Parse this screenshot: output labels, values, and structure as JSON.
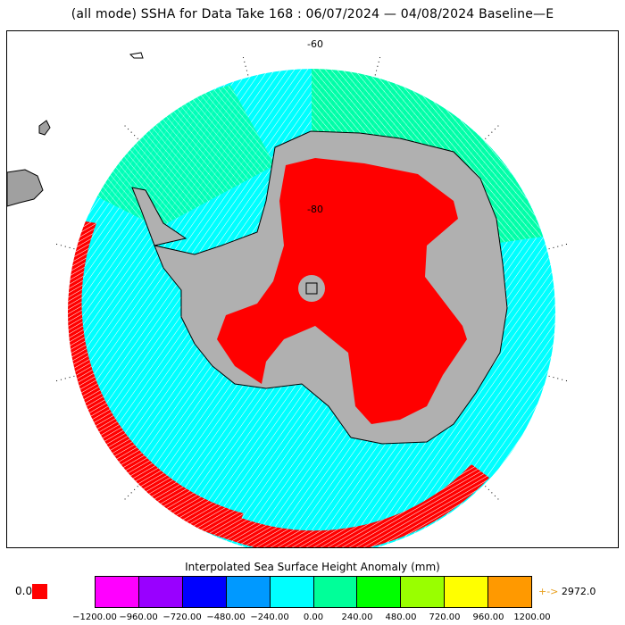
{
  "title": "(all mode) SSHA for Data Take 168 : 06/07/2024 — 04/08/2024 Baseline—E",
  "map": {
    "lat_labels": [
      "-60",
      "-80"
    ],
    "colors": {
      "ocean_low": "#00ffff",
      "ocean_mid": "#00ff99",
      "ice_shelf": "#b0b0b0",
      "land_high": "#ff0000",
      "continent_outline": "#000000",
      "outside_land": "#a0a0a0",
      "grid": "#000000"
    }
  },
  "legend": {
    "title": "Interpolated Sea Surface Height Anomaly (mm)",
    "under_value": "0.0",
    "under_color": "#ff0000",
    "over_value": "2972.0",
    "over_arrow": "+->",
    "bins": [
      {
        "color": "#ff00ff"
      },
      {
        "color": "#9900ff"
      },
      {
        "color": "#0000ff"
      },
      {
        "color": "#0099ff"
      },
      {
        "color": "#00ffff"
      },
      {
        "color": "#00ff99"
      },
      {
        "color": "#00ff00"
      },
      {
        "color": "#99ff00"
      },
      {
        "color": "#ffff00"
      },
      {
        "color": "#ff9900"
      }
    ],
    "ticks": [
      "−1200.00",
      "−960.00",
      "−720.00",
      "−480.00",
      "−240.00",
      "0.00",
      "240.00",
      "480.00",
      "720.00",
      "960.00",
      "1200.00"
    ]
  }
}
